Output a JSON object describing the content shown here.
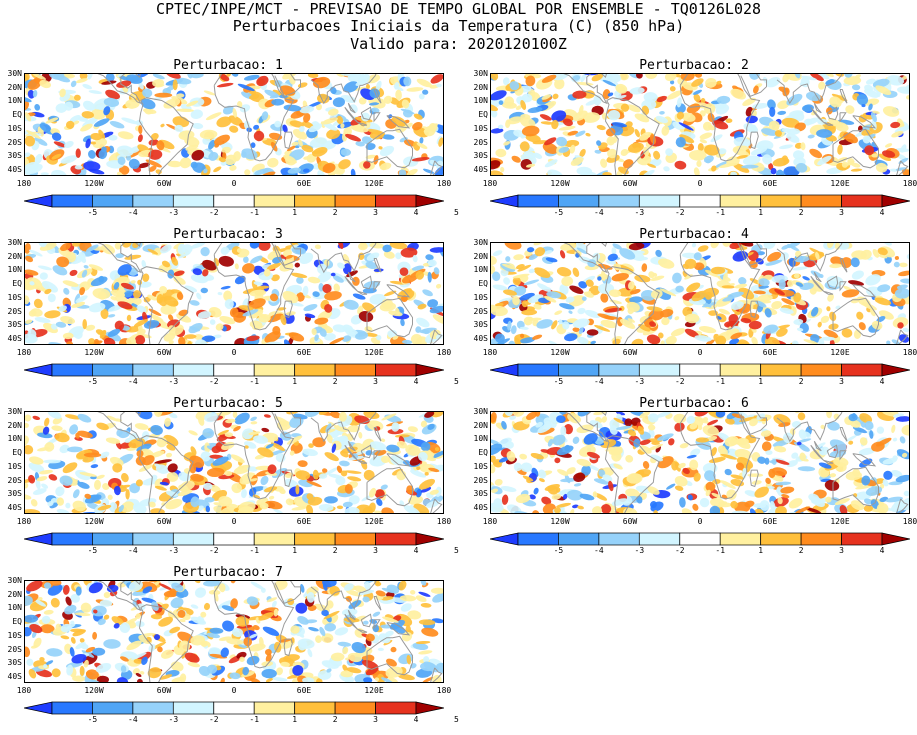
{
  "header": {
    "line1": "CPTEC/INPE/MCT - PREVISAO DE TEMPO GLOBAL POR ENSEMBLE - TQ0126L028",
    "line2": "Perturbacoes Iniciais da Temperatura (C) (850 hPa)",
    "line3": "Valido para: 2020120100Z"
  },
  "panels": [
    {
      "title": "Perturbacao: 1"
    },
    {
      "title": "Perturbacao: 2"
    },
    {
      "title": "Perturbacao: 3"
    },
    {
      "title": "Perturbacao: 4"
    },
    {
      "title": "Perturbacao: 5"
    },
    {
      "title": "Perturbacao: 6"
    },
    {
      "title": "Perturbacao: 7"
    }
  ],
  "lat_labels": [
    "30N",
    "20N",
    "10N",
    "EQ",
    "10S",
    "20S",
    "30S",
    "40S"
  ],
  "lon_labels": [
    "180",
    "120W",
    "60W",
    "0",
    "60E",
    "120E",
    "180"
  ],
  "colorbar": {
    "labels": [
      "-5",
      "-4",
      "-3",
      "-2",
      "-1",
      "1",
      "2",
      "3",
      "4",
      "5"
    ],
    "colors": [
      "#1e3cff",
      "#2878ff",
      "#50a5f5",
      "#96d2fa",
      "#d2f5ff",
      "#ffffff",
      "#fff0a0",
      "#ffc03c",
      "#ff8c1e",
      "#e6321e",
      "#a00000"
    ]
  }
}
